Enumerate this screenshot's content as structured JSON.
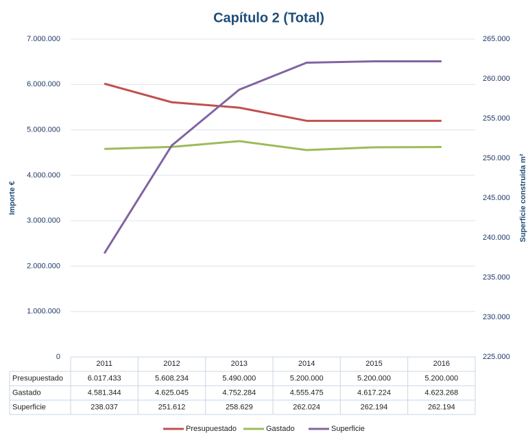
{
  "chart_data": {
    "type": "line",
    "title": "Capítulo 2 (Total)",
    "ylabel": "Importe €",
    "y2label": "Superficie construida m²",
    "categories": [
      "2011",
      "2012",
      "2013",
      "2014",
      "2015",
      "2016"
    ],
    "series": [
      {
        "name": "Presupuestado",
        "color": "#c0504d",
        "values": [
          6017433,
          5608234,
          5490000,
          5200000,
          5200000,
          5200000
        ],
        "value_labels": [
          "6.017.433",
          "5.608.234",
          "5.490.000",
          "5.200.000",
          "5.200.000",
          "5.200.000"
        ]
      },
      {
        "name": "Gastado",
        "color": "#9bbb59",
        "values": [
          4581344,
          4625045,
          4752284,
          4555475,
          4617224,
          4623268
        ],
        "value_labels": [
          "4.581.344",
          "4.625.045",
          "4.752.284",
          "4.555.475",
          "4.617.224",
          "4.623.268"
        ]
      },
      {
        "name": "Superficie",
        "color": "#8064a2",
        "axis": "y2",
        "values": [
          238037,
          251612,
          258629,
          262024,
          262194,
          262194
        ],
        "value_labels": [
          "238.037",
          "251.612",
          "258.629",
          "262.024",
          "262.194",
          "262.194"
        ]
      }
    ],
    "ylim": [
      0,
      7000000
    ],
    "yticks": [
      0,
      {
        "value": 1000000,
        "label": "1.000.000"
      },
      {
        "value": 2000000,
        "label": "2.000.000"
      },
      {
        "value": 3000000,
        "label": "3.000.000"
      },
      {
        "value": 4000000,
        "label": "4.000.000"
      },
      {
        "value": 5000000,
        "label": "5.000.000"
      },
      {
        "value": 6000000,
        "label": "6.000.000"
      },
      {
        "value": 7000000,
        "label": "7.000.000"
      }
    ],
    "y2lim": [
      225000,
      265000
    ],
    "y2ticks": [
      {
        "value": 225000,
        "label": "225.000"
      },
      {
        "value": 230000,
        "label": "230.000"
      },
      {
        "value": 235000,
        "label": "235.000"
      },
      {
        "value": 240000,
        "label": "240.000"
      },
      {
        "value": 245000,
        "label": "245.000"
      },
      {
        "value": 250000,
        "label": "250.000"
      },
      {
        "value": 255000,
        "label": "255.000"
      },
      {
        "value": 260000,
        "label": "260.000"
      },
      {
        "value": 265000,
        "label": "265.000"
      }
    ],
    "grid": true,
    "legend": "bottom"
  }
}
